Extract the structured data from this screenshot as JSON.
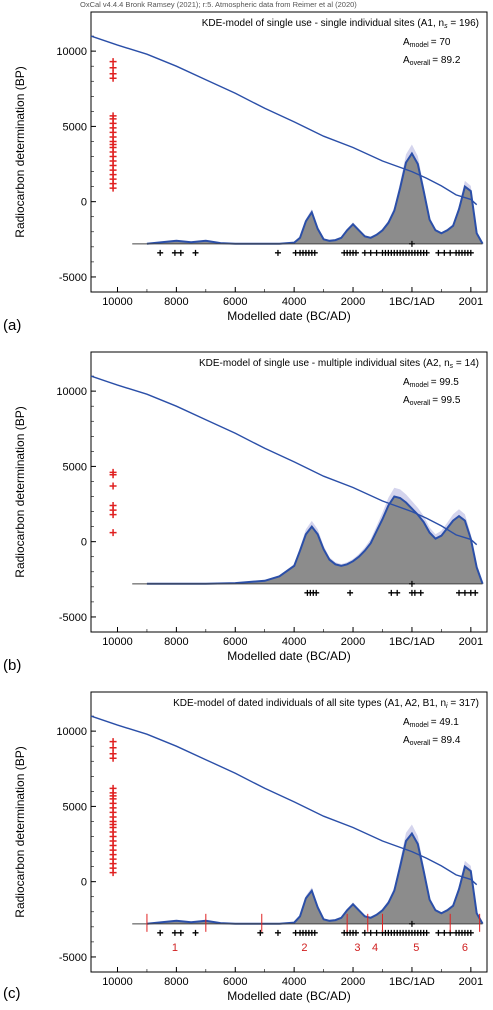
{
  "credit": "OxCal v4.4.4 Bronk Ramsey (2021); r:5. Atmospheric data from Reimer et al (2020)",
  "chart_data": [
    {
      "type": "line",
      "panel_label": "(a)",
      "title": "KDE-model of single use - single individual sites (A1, n",
      "title_sub": "s",
      "title_end": " = 196)",
      "a_model_label": "A",
      "a_model_sub": "model",
      "a_model_value": "= 70",
      "a_overall_label": "A",
      "a_overall_sub": "overall",
      "a_overall_value": "= 89.2",
      "xlabel": "Modelled date (BC/AD)",
      "ylabel": "Radiocarbon determination (BP)",
      "xlim": [
        -10900,
        2550
      ],
      "ylim": [
        -6000,
        12600
      ],
      "xticks": [
        {
          "v": -10000,
          "label": "10000"
        },
        {
          "v": -8000,
          "label": "8000"
        },
        {
          "v": -6000,
          "label": "6000"
        },
        {
          "v": -4000,
          "label": "4000"
        },
        {
          "v": -2000,
          "label": "2000"
        },
        {
          "v": 1,
          "label": "1BC/1AD"
        },
        {
          "v": 2001,
          "label": "2001"
        }
      ],
      "yticks": [
        {
          "v": 10000,
          "label": "10000"
        },
        {
          "v": 5000,
          "label": "5000"
        },
        {
          "v": 0,
          "label": "0"
        },
        {
          "v": -5000,
          "label": "-5000"
        }
      ],
      "calibration_curve": [
        [
          -10900,
          11000
        ],
        [
          -10000,
          10400
        ],
        [
          -9000,
          9800
        ],
        [
          -8000,
          9000
        ],
        [
          -7000,
          8100
        ],
        [
          -6000,
          7200
        ],
        [
          -5000,
          6200
        ],
        [
          -4000,
          5300
        ],
        [
          -3000,
          4350
        ],
        [
          -2000,
          3600
        ],
        [
          -1000,
          2700
        ],
        [
          0,
          2000
        ],
        [
          500,
          1550
        ],
        [
          1000,
          1050
        ],
        [
          1500,
          450
        ],
        [
          2000,
          150
        ],
        [
          2200,
          -200
        ]
      ],
      "density_baseline": -2800,
      "density_x": [
        -9000,
        -8500,
        -8000,
        -7500,
        -7000,
        -6500,
        -6000,
        -5500,
        -5000,
        -4500,
        -4000,
        -3800,
        -3600,
        -3400,
        -3200,
        -3000,
        -2800,
        -2600,
        -2400,
        -2200,
        -2000,
        -1800,
        -1600,
        -1400,
        -1200,
        -1000,
        -800,
        -600,
        -400,
        -200,
        0,
        200,
        400,
        600,
        800,
        1000,
        1200,
        1400,
        1600,
        1800,
        2000,
        2200,
        2400
      ],
      "density_y": [
        0,
        100,
        200,
        100,
        200,
        50,
        0,
        0,
        0,
        0,
        80,
        400,
        1500,
        2100,
        1000,
        300,
        200,
        250,
        400,
        900,
        1300,
        900,
        500,
        400,
        600,
        900,
        1400,
        2200,
        3700,
        5400,
        6000,
        5300,
        3500,
        1600,
        900,
        700,
        900,
        1200,
        2300,
        3800,
        3500,
        700,
        0
      ],
      "dated_samples": [
        -8550,
        -8050,
        -7850,
        -7350,
        -4550,
        -3950,
        -3800,
        -3700,
        -3600,
        -3500,
        -3400,
        -3300,
        -2300,
        -2200,
        -2100,
        -2000,
        -1900,
        -1600,
        -1400,
        -1200,
        -1000,
        -900,
        -800,
        -700,
        -600,
        -500,
        -400,
        -300,
        -200,
        -100,
        0,
        100,
        200,
        300,
        400,
        500,
        900,
        1100,
        1300,
        1500,
        1600,
        1700,
        1800,
        1900,
        2000
      ],
      "undated_c14": [
        9300,
        8900,
        8500,
        8200,
        5700,
        5500,
        5200,
        4900,
        4600,
        4300,
        4000,
        3800,
        3600,
        3300,
        3000,
        2700,
        2400,
        2100,
        1800,
        1500,
        1200,
        900
      ],
      "undated_x": -10150
    },
    {
      "type": "line",
      "panel_label": "(b)",
      "title": "KDE-model of single use - multiple individual sites (A2, n",
      "title_sub": "s",
      "title_end": " = 14)",
      "a_model_label": "A",
      "a_model_sub": "model",
      "a_model_value": "= 99.5",
      "a_overall_label": "A",
      "a_overall_sub": "overall",
      "a_overall_value": "= 99.5",
      "xlabel": "Modelled date (BC/AD)",
      "ylabel": "Radiocarbon determination (BP)",
      "xlim": [
        -10900,
        2550
      ],
      "ylim": [
        -6000,
        12600
      ],
      "xticks": [
        {
          "v": -10000,
          "label": "10000"
        },
        {
          "v": -8000,
          "label": "8000"
        },
        {
          "v": -6000,
          "label": "6000"
        },
        {
          "v": -4000,
          "label": "4000"
        },
        {
          "v": -2000,
          "label": "2000"
        },
        {
          "v": 1,
          "label": "1BC/1AD"
        },
        {
          "v": 2001,
          "label": "2001"
        }
      ],
      "yticks": [
        {
          "v": 10000,
          "label": "10000"
        },
        {
          "v": 5000,
          "label": "5000"
        },
        {
          "v": 0,
          "label": "0"
        },
        {
          "v": -5000,
          "label": "-5000"
        }
      ],
      "calibration_curve": [
        [
          -10900,
          11000
        ],
        [
          -10000,
          10400
        ],
        [
          -9000,
          9800
        ],
        [
          -8000,
          9000
        ],
        [
          -7000,
          8100
        ],
        [
          -6000,
          7200
        ],
        [
          -5000,
          6200
        ],
        [
          -4000,
          5300
        ],
        [
          -3000,
          4350
        ],
        [
          -2000,
          3600
        ],
        [
          -1000,
          2700
        ],
        [
          0,
          2000
        ],
        [
          500,
          1550
        ],
        [
          1000,
          1050
        ],
        [
          1500,
          450
        ],
        [
          2000,
          150
        ],
        [
          2200,
          -200
        ]
      ],
      "density_baseline": -2800,
      "density_x": [
        -9000,
        -8000,
        -7000,
        -6000,
        -5000,
        -4500,
        -4000,
        -3800,
        -3600,
        -3400,
        -3200,
        -3000,
        -2800,
        -2600,
        -2400,
        -2200,
        -2000,
        -1800,
        -1600,
        -1400,
        -1200,
        -1000,
        -800,
        -600,
        -400,
        -200,
        0,
        200,
        400,
        600,
        800,
        1000,
        1200,
        1400,
        1600,
        1800,
        2000,
        2200,
        2400
      ],
      "density_y": [
        0,
        0,
        0,
        50,
        200,
        500,
        1200,
        2200,
        3300,
        3800,
        3300,
        2300,
        1600,
        1300,
        1200,
        1300,
        1500,
        1800,
        2200,
        2700,
        3500,
        4300,
        5200,
        5800,
        5700,
        5400,
        5000,
        4600,
        4100,
        3400,
        3000,
        3200,
        3700,
        4200,
        4500,
        4200,
        3000,
        1100,
        0
      ],
      "dated_samples": [
        -3550,
        -3450,
        -3350,
        -3250,
        -2100,
        -700,
        -500,
        0,
        100,
        300,
        1600,
        1800,
        2000,
        2150
      ],
      "undated_c14": [
        4600,
        4450,
        3700,
        2400,
        2100,
        1800,
        600
      ],
      "undated_x": -10150
    },
    {
      "type": "line",
      "panel_label": "(c)",
      "title": "KDE-model of dated individuals of all site types (A1, A2, B1, n",
      "title_sub": "i",
      "title_end": " = 317)",
      "a_model_label": "A",
      "a_model_sub": "model",
      "a_model_value": "= 49.1",
      "a_overall_label": "A",
      "a_overall_sub": "overall",
      "a_overall_value": "= 89.4",
      "xlabel": "Modelled date (BC/AD)",
      "ylabel": "Radiocarbon determination (BP)",
      "xlim": [
        -10900,
        2550
      ],
      "ylim": [
        -6000,
        12600
      ],
      "xticks": [
        {
          "v": -10000,
          "label": "10000"
        },
        {
          "v": -8000,
          "label": "8000"
        },
        {
          "v": -6000,
          "label": "6000"
        },
        {
          "v": -4000,
          "label": "4000"
        },
        {
          "v": -2000,
          "label": "2000"
        },
        {
          "v": 1,
          "label": "1BC/1AD"
        },
        {
          "v": 2001,
          "label": "2001"
        }
      ],
      "yticks": [
        {
          "v": 10000,
          "label": "10000"
        },
        {
          "v": 5000,
          "label": "5000"
        },
        {
          "v": 0,
          "label": "0"
        },
        {
          "v": -5000,
          "label": "-5000"
        }
      ],
      "calibration_curve": [
        [
          -10900,
          11000
        ],
        [
          -10000,
          10400
        ],
        [
          -9000,
          9800
        ],
        [
          -8000,
          9000
        ],
        [
          -7000,
          8100
        ],
        [
          -6000,
          7200
        ],
        [
          -5000,
          6200
        ],
        [
          -4000,
          5300
        ],
        [
          -3000,
          4350
        ],
        [
          -2000,
          3600
        ],
        [
          -1000,
          2700
        ],
        [
          0,
          2000
        ],
        [
          500,
          1550
        ],
        [
          1000,
          1050
        ],
        [
          1500,
          450
        ],
        [
          2000,
          150
        ],
        [
          2200,
          -200
        ]
      ],
      "density_baseline": -2800,
      "density_x": [
        -9000,
        -8500,
        -8000,
        -7500,
        -7000,
        -6500,
        -6000,
        -5500,
        -5000,
        -4500,
        -4000,
        -3800,
        -3600,
        -3400,
        -3200,
        -3000,
        -2800,
        -2600,
        -2400,
        -2200,
        -2000,
        -1800,
        -1600,
        -1400,
        -1200,
        -1000,
        -800,
        -600,
        -400,
        -200,
        0,
        200,
        400,
        600,
        800,
        1000,
        1200,
        1400,
        1600,
        1800,
        2000,
        2200,
        2400
      ],
      "density_y": [
        0,
        100,
        200,
        100,
        200,
        50,
        0,
        0,
        0,
        0,
        80,
        500,
        1700,
        2200,
        1100,
        300,
        200,
        250,
        400,
        900,
        1300,
        900,
        500,
        400,
        600,
        900,
        1400,
        2200,
        3800,
        5500,
        6000,
        5300,
        3500,
        1600,
        900,
        700,
        900,
        1200,
        2300,
        3800,
        3500,
        700,
        0
      ],
      "dated_samples": [
        -8550,
        -8050,
        -7850,
        -7350,
        -5150,
        -4550,
        -3950,
        -3800,
        -3700,
        -3600,
        -3500,
        -3400,
        -3300,
        -2300,
        -2200,
        -2100,
        -2000,
        -1900,
        -1600,
        -1400,
        -1200,
        -1000,
        -900,
        -800,
        -700,
        -600,
        -500,
        -400,
        -300,
        -200,
        -100,
        0,
        100,
        200,
        300,
        400,
        500,
        900,
        1100,
        1300,
        1500,
        1600,
        1700,
        1800,
        1900,
        2000
      ],
      "undated_c14": [
        9300,
        8900,
        8500,
        8200,
        6200,
        5900,
        5700,
        5500,
        5200,
        4900,
        4600,
        4300,
        4000,
        3800,
        3600,
        3300,
        3000,
        2700,
        2400,
        2100,
        1800,
        1500,
        1200,
        900,
        600
      ],
      "undated_x": -10150,
      "phase_boundaries": [
        -9000,
        -7000,
        -5100,
        -2200,
        -1500,
        -1000,
        1300,
        2300
      ],
      "phase_labels": [
        {
          "x": -8050,
          "label": "1"
        },
        {
          "x": -3650,
          "label": "2"
        },
        {
          "x": -1850,
          "label": "3"
        },
        {
          "x": -1250,
          "label": "4"
        },
        {
          "x": 150,
          "label": "5"
        },
        {
          "x": 1800,
          "label": "6"
        }
      ]
    }
  ]
}
